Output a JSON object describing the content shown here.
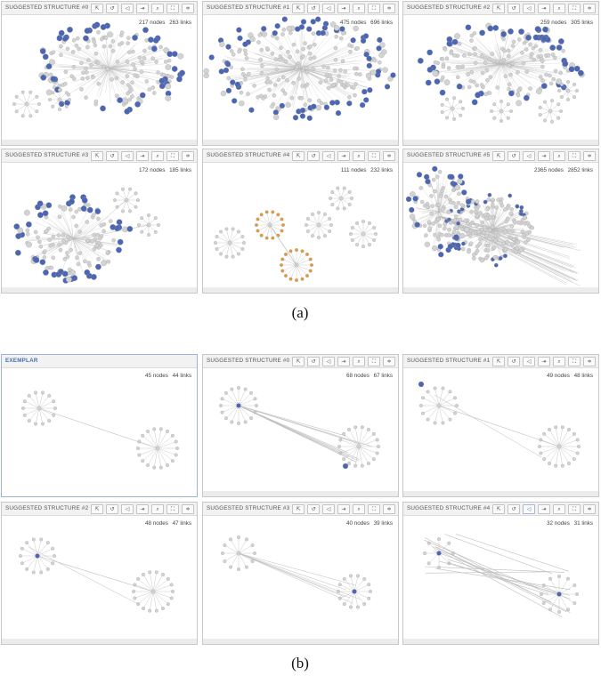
{
  "toolbar_icons": [
    "select-icon",
    "lasso-icon",
    "filter-icon",
    "export-icon",
    "zoom-icon",
    "fit-icon",
    "layout-icon"
  ],
  "toolbar_glyphs": [
    "⇱",
    "↺",
    "◁",
    "⇥",
    "⌕",
    "⛶",
    "≑"
  ],
  "colors": {
    "focus": "#4b66b4",
    "context": "#d3d3d3",
    "highlight": "#e49a3a",
    "edge": "#bdbdbd"
  },
  "section_a": {
    "caption": "(a)",
    "panels": [
      {
        "title": "SUGGESTED STRUCTURE #0",
        "nodes": "217 nodes",
        "links": "263 links"
      },
      {
        "title": "SUGGESTED STRUCTURE #1",
        "nodes": "475 nodes",
        "links": "696 links"
      },
      {
        "title": "SUGGESTED STRUCTURE #2",
        "nodes": "259 nodes",
        "links": "305 links"
      },
      {
        "title": "SUGGESTED STRUCTURE #3",
        "nodes": "172 nodes",
        "links": "185 links"
      },
      {
        "title": "SUGGESTED STRUCTURE #4",
        "nodes": "111 nodes",
        "links": "232 links"
      },
      {
        "title": "SUGGESTED STRUCTURE #5",
        "nodes": "2365 nodes",
        "links": "2852 links"
      }
    ]
  },
  "section_b": {
    "caption": "(b)",
    "panels": [
      {
        "title": "EXEMPLAR",
        "nodes": "45 nodes",
        "links": "44 links"
      },
      {
        "title": "SUGGESTED STRUCTURE #0",
        "nodes": "68 nodes",
        "links": "67 links"
      },
      {
        "title": "SUGGESTED STRUCTURE #1",
        "nodes": "49 nodes",
        "links": "48 links"
      },
      {
        "title": "SUGGESTED STRUCTURE #2",
        "nodes": "48 nodes",
        "links": "47 links"
      },
      {
        "title": "SUGGESTED STRUCTURE #3",
        "nodes": "40 nodes",
        "links": "39 links"
      },
      {
        "title": "SUGGESTED STRUCTURE #4",
        "nodes": "32 nodes",
        "links": "31 links"
      }
    ]
  }
}
